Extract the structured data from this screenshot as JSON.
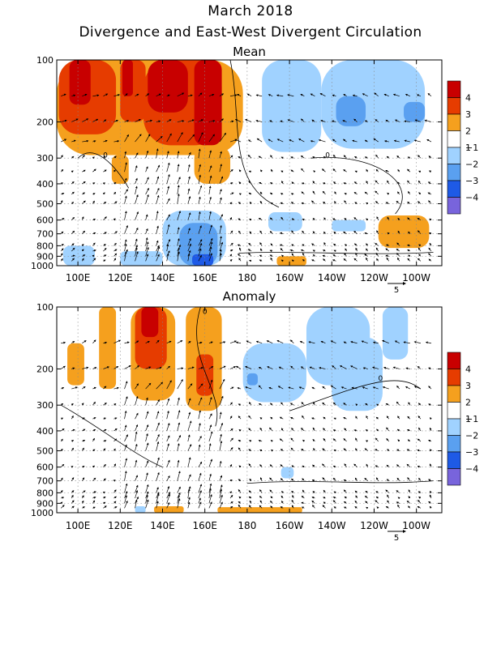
{
  "title": "March 2018",
  "subtitle": "Divergence and East-West Divergent Circulation",
  "colors": {
    "pos4": "#c80000",
    "pos3": "#e63c00",
    "pos2": "#f5a01e",
    "pos1": "#ffffff",
    "neg1": "#a0d2ff",
    "neg2": "#5aa0f0",
    "neg3": "#1e5ae6",
    "neg4": "#7864dc"
  },
  "chart_data": [
    {
      "type": "heatmap",
      "title": "Mean",
      "xticks": [
        "100E",
        "120E",
        "140E",
        "160E",
        "180",
        "160W",
        "140W",
        "120W",
        "100W"
      ],
      "xtick_lon": [
        100,
        120,
        140,
        160,
        180,
        200,
        220,
        240,
        260
      ],
      "xlim": [
        90,
        272
      ],
      "yticks": [
        "100",
        "200",
        "300",
        "400",
        "500",
        "600",
        "700",
        "800",
        "900",
        "1000"
      ],
      "ytick_p": [
        100,
        200,
        300,
        400,
        500,
        600,
        700,
        800,
        900,
        1000
      ],
      "ylim": [
        100,
        1000
      ],
      "yscale": "log",
      "colorbar_labels": [
        "4",
        "3",
        "2",
        "1",
        "-1",
        "-2",
        "-3",
        "-4"
      ],
      "vector_ref": "5",
      "contour_labels": [
        {
          "text": "0",
          "lon": 113,
          "p": 290
        },
        {
          "text": "0",
          "lon": 218,
          "p": 290
        }
      ],
      "regions": [
        {
          "cat": "pos2",
          "lon": [
            90,
            178
          ],
          "p": [
            100,
            290
          ]
        },
        {
          "cat": "pos3",
          "lon": [
            91,
            118
          ],
          "p": [
            100,
            230
          ]
        },
        {
          "cat": "pos4",
          "lon": [
            96,
            106
          ],
          "p": [
            100,
            165
          ]
        },
        {
          "cat": "pos3",
          "lon": [
            120,
            132
          ],
          "p": [
            100,
            200
          ]
        },
        {
          "cat": "pos4",
          "lon": [
            121,
            126
          ],
          "p": [
            100,
            150
          ]
        },
        {
          "cat": "pos3",
          "lon": [
            131,
            168
          ],
          "p": [
            100,
            260
          ]
        },
        {
          "cat": "pos4",
          "lon": [
            133,
            152
          ],
          "p": [
            100,
            180
          ]
        },
        {
          "cat": "pos4",
          "lon": [
            155,
            168
          ],
          "p": [
            100,
            260
          ]
        },
        {
          "cat": "pos2",
          "lon": [
            155,
            172
          ],
          "p": [
            260,
            400
          ]
        },
        {
          "cat": "pos2",
          "lon": [
            116,
            124
          ],
          "p": [
            290,
            400
          ]
        },
        {
          "cat": "neg1",
          "lon": [
            187,
            215
          ],
          "p": [
            100,
            280
          ]
        },
        {
          "cat": "neg1",
          "lon": [
            215,
            264
          ],
          "p": [
            100,
            270
          ]
        },
        {
          "cat": "neg2",
          "lon": [
            222,
            236
          ],
          "p": [
            150,
            210
          ]
        },
        {
          "cat": "neg2",
          "lon": [
            254,
            264
          ],
          "p": [
            160,
            200
          ]
        },
        {
          "cat": "neg1",
          "lon": [
            140,
            170
          ],
          "p": [
            540,
            1000
          ]
        },
        {
          "cat": "neg2",
          "lon": [
            148,
            166
          ],
          "p": [
            620,
            1000
          ]
        },
        {
          "cat": "neg3",
          "lon": [
            154,
            164
          ],
          "p": [
            880,
            1000
          ]
        },
        {
          "cat": "neg1",
          "lon": [
            93,
            108
          ],
          "p": [
            800,
            1000
          ]
        },
        {
          "cat": "neg1",
          "lon": [
            120,
            140
          ],
          "p": [
            850,
            1000
          ]
        },
        {
          "cat": "neg1",
          "lon": [
            190,
            206
          ],
          "p": [
            550,
            680
          ]
        },
        {
          "cat": "neg1",
          "lon": [
            220,
            236
          ],
          "p": [
            600,
            680
          ]
        },
        {
          "cat": "pos2",
          "lon": [
            242,
            266
          ],
          "p": [
            570,
            820
          ]
        },
        {
          "cat": "pos2",
          "lon": [
            194,
            208
          ],
          "p": [
            900,
            1000
          ]
        }
      ]
    },
    {
      "type": "heatmap",
      "title": "Anomaly",
      "xticks": [
        "100E",
        "120E",
        "140E",
        "160E",
        "180",
        "160W",
        "140W",
        "120W",
        "100W"
      ],
      "xtick_lon": [
        100,
        120,
        140,
        160,
        180,
        200,
        220,
        240,
        260
      ],
      "xlim": [
        90,
        272
      ],
      "yticks": [
        "100",
        "200",
        "300",
        "400",
        "500",
        "600",
        "700",
        "800",
        "900",
        "1000"
      ],
      "ytick_p": [
        100,
        200,
        300,
        400,
        500,
        600,
        700,
        800,
        900,
        1000
      ],
      "ylim": [
        100,
        1000
      ],
      "yscale": "log",
      "colorbar_labels": [
        "4",
        "3",
        "2",
        "1",
        "-1",
        "-2",
        "-3",
        "-4"
      ],
      "vector_ref": "5",
      "contour_labels": [
        {
          "text": "0",
          "lon": 160,
          "p": 105
        },
        {
          "text": "0",
          "lon": 243,
          "p": 222
        }
      ],
      "regions": [
        {
          "cat": "pos2",
          "lon": [
            95,
            103
          ],
          "p": [
            150,
            240
          ]
        },
        {
          "cat": "pos2",
          "lon": [
            110,
            118
          ],
          "p": [
            100,
            250
          ]
        },
        {
          "cat": "pos2",
          "lon": [
            125,
            146
          ],
          "p": [
            100,
            285
          ]
        },
        {
          "cat": "pos3",
          "lon": [
            127,
            142
          ],
          "p": [
            100,
            200
          ]
        },
        {
          "cat": "pos4",
          "lon": [
            130,
            138
          ],
          "p": [
            100,
            140
          ]
        },
        {
          "cat": "pos2",
          "lon": [
            151,
            168
          ],
          "p": [
            100,
            320
          ]
        },
        {
          "cat": "pos3",
          "lon": [
            156,
            164
          ],
          "p": [
            170,
            270
          ]
        },
        {
          "cat": "neg1",
          "lon": [
            178,
            208
          ],
          "p": [
            150,
            290
          ]
        },
        {
          "cat": "neg1",
          "lon": [
            208,
            238
          ],
          "p": [
            100,
            240
          ]
        },
        {
          "cat": "neg1",
          "lon": [
            220,
            244
          ],
          "p": [
            140,
            320
          ]
        },
        {
          "cat": "neg1",
          "lon": [
            244,
            256
          ],
          "p": [
            100,
            180
          ]
        },
        {
          "cat": "neg2",
          "lon": [
            180,
            185
          ],
          "p": [
            210,
            240
          ]
        },
        {
          "cat": "pos2",
          "lon": [
            136,
            150
          ],
          "p": [
            930,
            1000
          ]
        },
        {
          "cat": "pos2",
          "lon": [
            166,
            206
          ],
          "p": [
            940,
            1000
          ]
        },
        {
          "cat": "neg1",
          "lon": [
            196,
            202
          ],
          "p": [
            600,
            680
          ]
        },
        {
          "cat": "neg1",
          "lon": [
            127,
            132
          ],
          "p": [
            930,
            1000
          ]
        }
      ]
    }
  ]
}
